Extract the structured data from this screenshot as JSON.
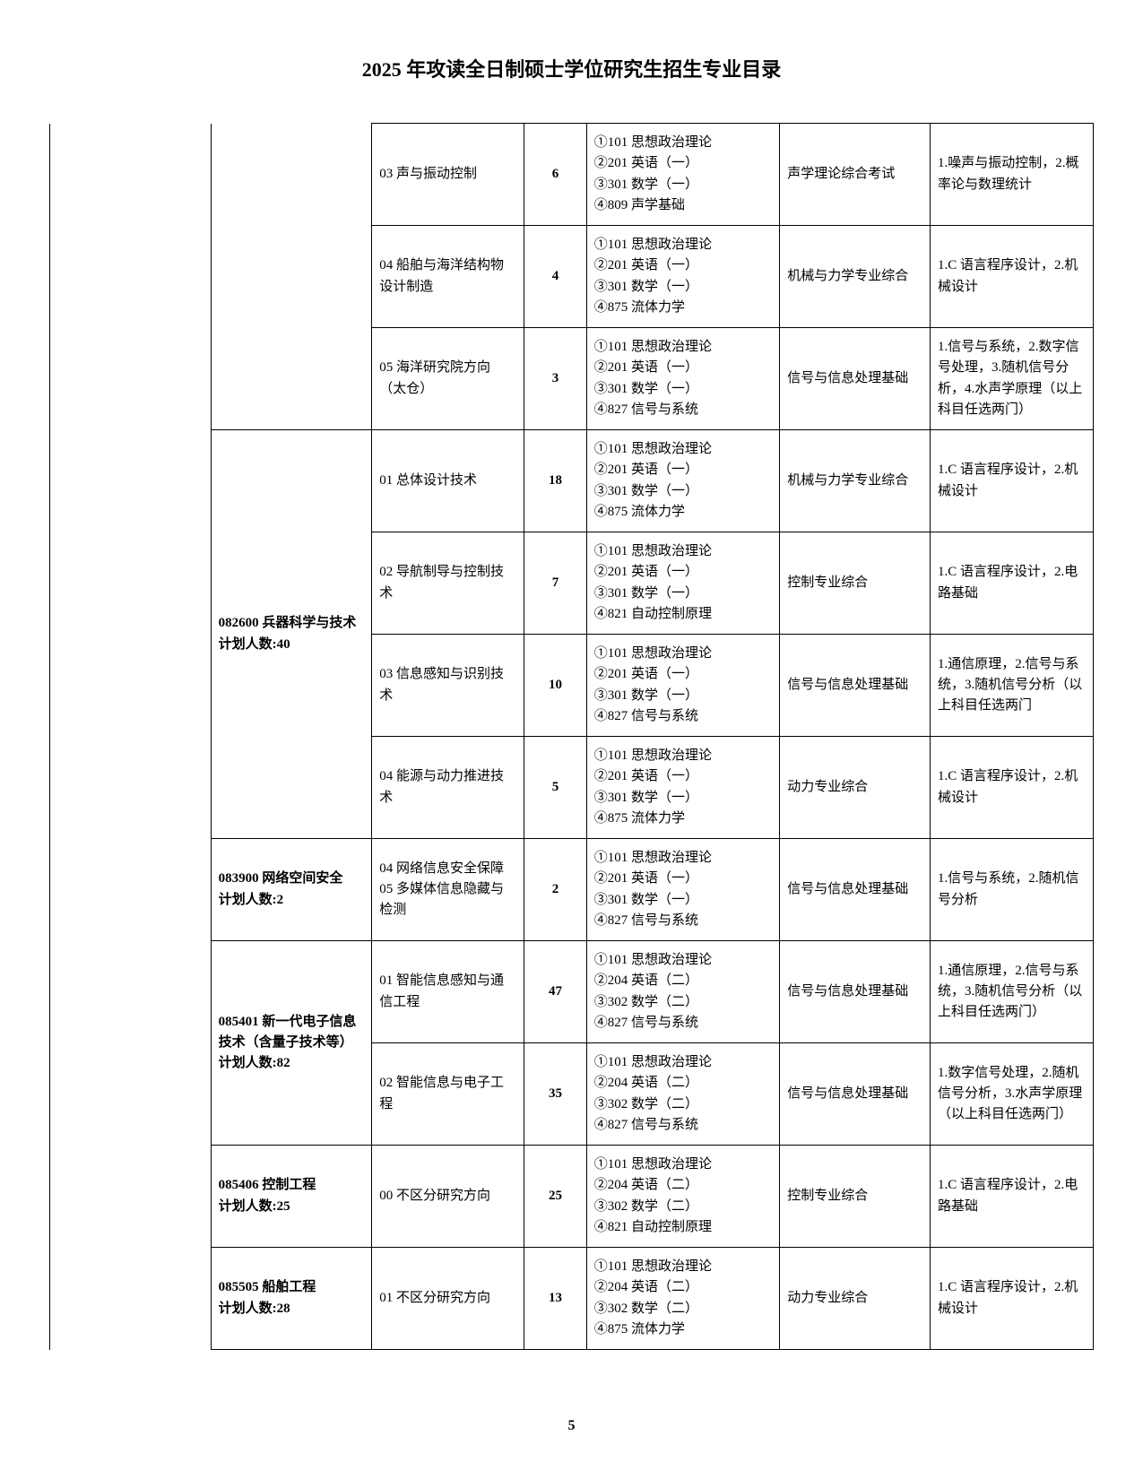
{
  "page_title": "2025 年攻读全日制硕士学位研究生招生专业目录",
  "page_number": "5",
  "rows": [
    {
      "subject": "",
      "direction": "03 声与振动控制",
      "count": "6",
      "exams": "①101 思想政治理论\n②201 英语（一）\n③301 数学（一）\n④809 声学基础",
      "retry": "声学理论综合考试",
      "equiv": "1.噪声与振动控制，2.概率论与数理统计"
    },
    {
      "direction": "04 船舶与海洋结构物设计制造",
      "count": "4",
      "exams": "①101 思想政治理论\n②201 英语（一）\n③301 数学（一）\n④875 流体力学",
      "retry": "机械与力学专业综合",
      "equiv": "1.C 语言程序设计，2.机械设计"
    },
    {
      "direction": "05 海洋研究院方向（太仓）",
      "count": "3",
      "exams": "①101 思想政治理论\n②201 英语（一）\n③301 数学（一）\n④827 信号与系统",
      "retry": "信号与信息处理基础",
      "equiv": "1.信号与系统，2.数字信号处理，3.随机信号分析，4.水声学原理（以上科目任选两门）"
    },
    {
      "subject": "082600 兵器科学与技术\n计划人数:40",
      "direction": "01 总体设计技术",
      "count": "18",
      "exams": "①101 思想政治理论\n②201 英语（一）\n③301 数学（一）\n④875 流体力学",
      "retry": "机械与力学专业综合",
      "equiv": "1.C 语言程序设计，2.机械设计"
    },
    {
      "direction": "02 导航制导与控制技术",
      "count": "7",
      "exams": "①101 思想政治理论\n②201 英语（一）\n③301 数学（一）\n④821 自动控制原理",
      "retry": "控制专业综合",
      "equiv": "1.C 语言程序设计，2.电路基础"
    },
    {
      "direction": "03 信息感知与识别技术",
      "count": "10",
      "exams": "①101 思想政治理论\n②201 英语（一）\n③301 数学（一）\n④827 信号与系统",
      "retry": "信号与信息处理基础",
      "equiv": "1.通信原理，2.信号与系统，3.随机信号分析（以上科目任选两门"
    },
    {
      "direction": "04 能源与动力推进技术",
      "count": "5",
      "exams": "①101 思想政治理论\n②201 英语（一）\n③301 数学（一）\n④875 流体力学",
      "retry": "动力专业综合",
      "equiv": "1.C 语言程序设计，2.机械设计"
    },
    {
      "subject": "083900 网络空间安全\n计划人数:2",
      "direction": "04 网络信息安全保障\n05 多媒体信息隐藏与检测",
      "count": "2",
      "exams": "①101 思想政治理论\n②201 英语（一）\n③301 数学（一）\n④827 信号与系统",
      "retry": "信号与信息处理基础",
      "equiv": "1.信号与系统，2.随机信号分析"
    },
    {
      "subject": "085401 新一代电子信息技术（含量子技术等）\n计划人数:82",
      "direction": "01 智能信息感知与通信工程",
      "count": "47",
      "exams": "①101 思想政治理论\n②204 英语（二）\n③302 数学（二）\n④827 信号与系统",
      "retry": "信号与信息处理基础",
      "equiv": "1.通信原理，2.信号与系统，3.随机信号分析（以上科目任选两门）"
    },
    {
      "direction": "02 智能信息与电子工程",
      "count": "35",
      "exams": "①101 思想政治理论\n②204 英语（二）\n③302 数学（二）\n④827 信号与系统",
      "retry": "信号与信息处理基础",
      "equiv": "1.数字信号处理，2.随机信号分析，3.水声学原理（以上科目任选两门）"
    },
    {
      "subject": "085406 控制工程\n计划人数:25",
      "direction": "00 不区分研究方向",
      "count": "25",
      "exams": "①101 思想政治理论\n②204 英语（二）\n③302 数学（二）\n④821 自动控制原理",
      "retry": "控制专业综合",
      "equiv": "1.C 语言程序设计，2.电路基础"
    },
    {
      "subject": "085505 船舶工程\n计划人数:28",
      "direction": "01 不区分研究方向",
      "count": "13",
      "exams": "①101 思想政治理论\n②204 英语（二）\n③302 数学（二）\n④875 流体力学",
      "retry": "动力专业综合",
      "equiv": "1.C 语言程序设计，2.机械设计"
    }
  ]
}
